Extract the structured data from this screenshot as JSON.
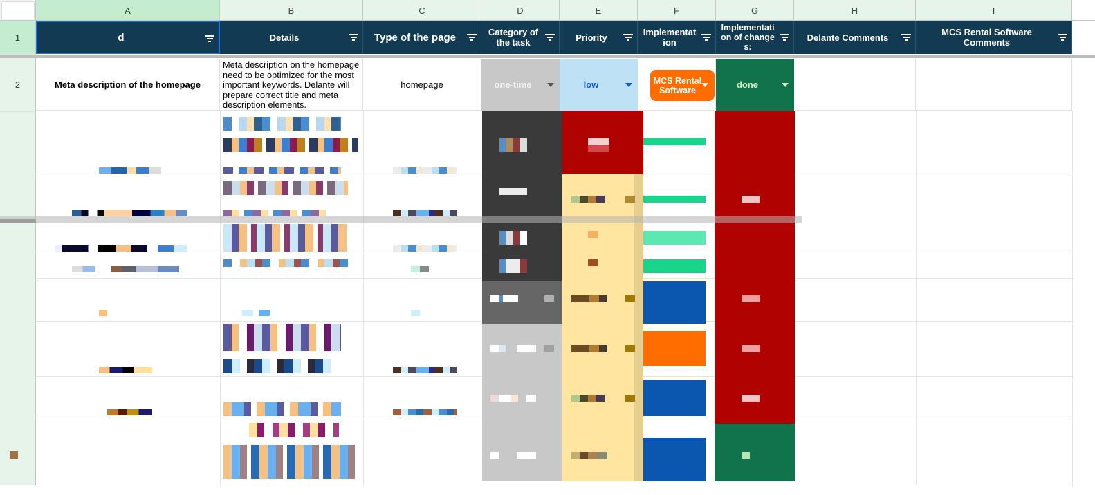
{
  "columns": [
    "A",
    "B",
    "C",
    "D",
    "E",
    "F",
    "G",
    "H",
    "I"
  ],
  "rows": [
    "1",
    "2"
  ],
  "headers": {
    "a": "d",
    "b": "Details",
    "c": "Type of the page",
    "d": "Category of the task",
    "e": "Priority",
    "f": "Implementation",
    "g": "Implementation of changes:",
    "h": "Delante Comments",
    "i": "MCS Rental Software Comments"
  },
  "row2": {
    "a": "Meta description of the homepage",
    "b": "Meta description on the homepage need to be optimized for the most important keywords. Delante will prepare correct title and meta description elements.",
    "c": "homepage",
    "d": "one-time",
    "e": "low",
    "f": "MCS Rental Software",
    "g": "done"
  },
  "colors": {
    "header_bg": "#123a52",
    "category_chip": "#c8c8c8",
    "priority_chip": "#bfe1f6",
    "priority_text": "#0b57d0",
    "implementation_pill": "#ff6d01",
    "done_chip": "#11734b",
    "done_text": "#d4edbc"
  },
  "icons": [
    "filter-icon",
    "dropdown-caret-icon"
  ]
}
